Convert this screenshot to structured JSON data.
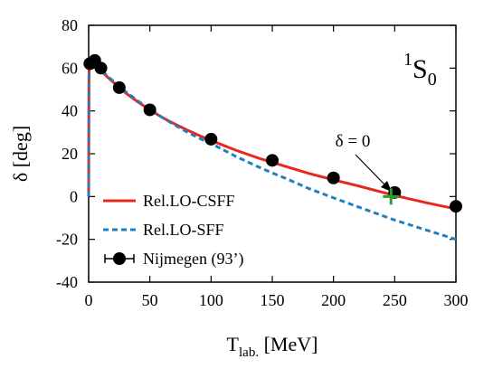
{
  "chart_data": {
    "type": "line",
    "xlabel_main": "T",
    "xlabel_sub": "lab.",
    "xlabel_unit": " [MeV]",
    "ylabel": "δ [deg]",
    "xlim": [
      0,
      300
    ],
    "ylim": [
      -40,
      80
    ],
    "xticks": [
      0,
      50,
      100,
      150,
      200,
      250,
      300
    ],
    "yticks": [
      -40,
      -20,
      0,
      20,
      40,
      60,
      80
    ],
    "grid": false,
    "legend_position": "lower-left",
    "annotation": {
      "label_main": "S",
      "label_sup": "1",
      "label_sub": "0",
      "arrow_text": "δ = 0",
      "zero_point": {
        "x": 247,
        "y": 0
      },
      "marker_color": "#2ca02c"
    },
    "series": [
      {
        "name": "Rel.LO-CSFF",
        "style": "solid",
        "color": "#e8271f",
        "x": [
          0,
          0.25,
          0.5,
          1,
          1.5,
          2,
          3,
          5,
          7,
          10,
          15,
          20,
          25,
          30,
          40,
          50,
          60,
          70,
          80,
          90,
          100,
          120,
          140,
          150,
          160,
          180,
          200,
          220,
          250,
          275,
          300
        ],
        "y": [
          0,
          55,
          62,
          63.5,
          63.8,
          63.7,
          63.2,
          62,
          60.5,
          59,
          56,
          53.5,
          51,
          48.5,
          44.3,
          40.5,
          37,
          34,
          31.2,
          28.6,
          26.2,
          21.7,
          17.7,
          16,
          14.2,
          10.8,
          7.8,
          5,
          0.5,
          -2.8,
          -5.8
        ]
      },
      {
        "name": "Rel.LO-SFF",
        "style": "dashed",
        "color": "#1f7fbf",
        "x": [
          0,
          0.25,
          0.5,
          1,
          1.5,
          2,
          3,
          5,
          7,
          10,
          15,
          20,
          25,
          30,
          40,
          50,
          60,
          70,
          80,
          90,
          100,
          120,
          140,
          150,
          160,
          180,
          200,
          220,
          250,
          275,
          300
        ],
        "y": [
          0,
          55,
          62,
          63.5,
          63.8,
          63.7,
          63.3,
          62.2,
          60.8,
          59.4,
          56.5,
          54,
          51.6,
          49.1,
          44.8,
          40.8,
          37,
          33.5,
          30.3,
          27.3,
          24.8,
          18.8,
          13.5,
          11,
          8.7,
          3.7,
          -0.6,
          -4.8,
          -11,
          -15.5,
          -20
        ]
      },
      {
        "name": "Nijmegen (93’)",
        "style": "markers",
        "color": "#000000",
        "x": [
          1,
          5,
          10,
          25,
          50,
          100,
          150,
          200,
          250,
          300
        ],
        "y": [
          62.1,
          63.6,
          60,
          50.9,
          40.5,
          26.8,
          16.9,
          8.7,
          1.9,
          -4.6
        ]
      }
    ]
  }
}
